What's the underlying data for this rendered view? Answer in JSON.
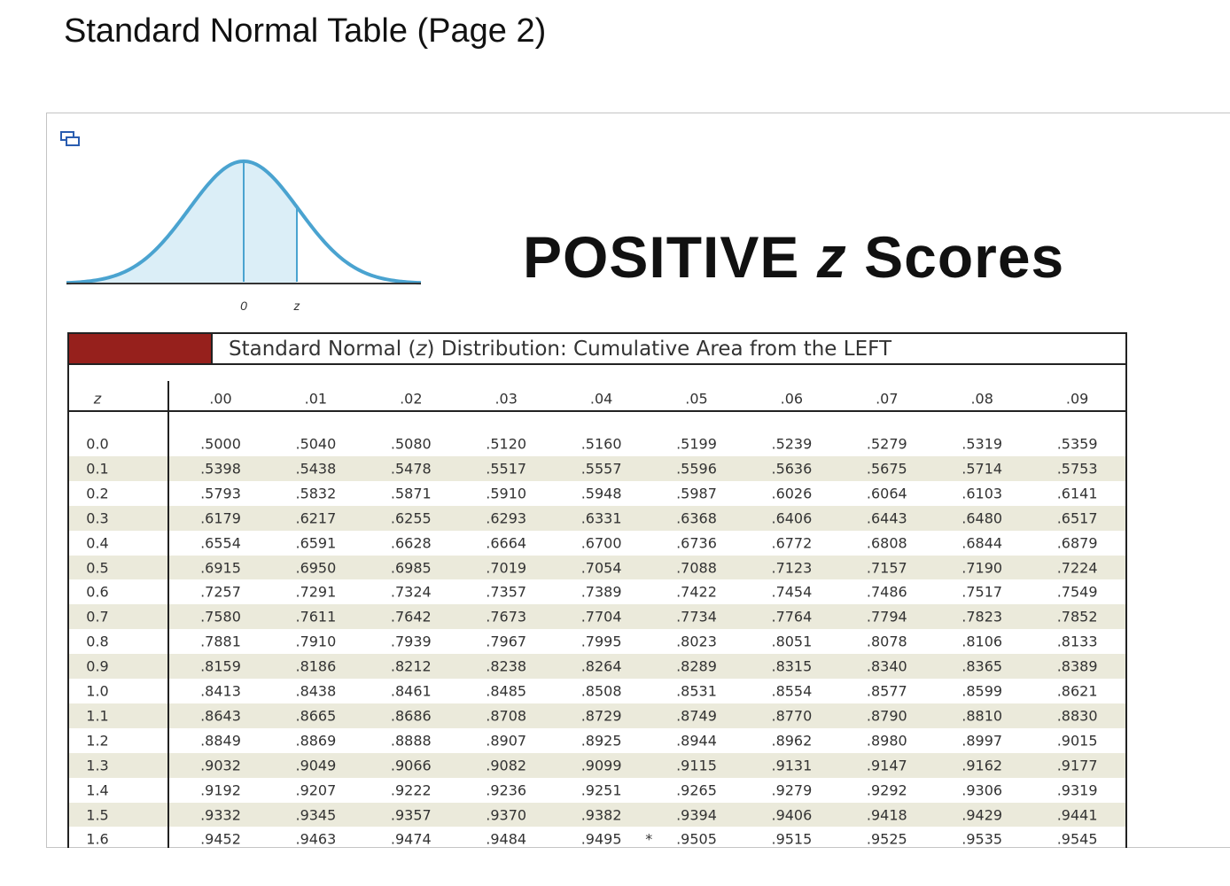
{
  "header": {
    "title": "Standard Normal Table (Page 2)"
  },
  "figure": {
    "heading_prefix": "POSITIVE",
    "heading_variable": "z",
    "heading_suffix": "Scores",
    "curve_labels": [
      "0",
      "z"
    ]
  },
  "table": {
    "caption_prefix": "Standard Normal (",
    "caption_variable": "z",
    "caption_suffix": ") Distribution: Cumulative Area from the LEFT",
    "columns": [
      "z",
      ".00",
      ".01",
      ".02",
      ".03",
      ".04",
      ".05",
      ".06",
      ".07",
      ".08",
      ".09"
    ],
    "rows": [
      [
        "0.0",
        ".5000",
        ".5040",
        ".5080",
        ".5120",
        ".5160",
        ".5199",
        ".5239",
        ".5279",
        ".5319",
        ".5359"
      ],
      [
        "0.1",
        ".5398",
        ".5438",
        ".5478",
        ".5517",
        ".5557",
        ".5596",
        ".5636",
        ".5675",
        ".5714",
        ".5753"
      ],
      [
        "0.2",
        ".5793",
        ".5832",
        ".5871",
        ".5910",
        ".5948",
        ".5987",
        ".6026",
        ".6064",
        ".6103",
        ".6141"
      ],
      [
        "0.3",
        ".6179",
        ".6217",
        ".6255",
        ".6293",
        ".6331",
        ".6368",
        ".6406",
        ".6443",
        ".6480",
        ".6517"
      ],
      [
        "0.4",
        ".6554",
        ".6591",
        ".6628",
        ".6664",
        ".6700",
        ".6736",
        ".6772",
        ".6808",
        ".6844",
        ".6879"
      ],
      [
        "0.5",
        ".6915",
        ".6950",
        ".6985",
        ".7019",
        ".7054",
        ".7088",
        ".7123",
        ".7157",
        ".7190",
        ".7224"
      ],
      [
        "0.6",
        ".7257",
        ".7291",
        ".7324",
        ".7357",
        ".7389",
        ".7422",
        ".7454",
        ".7486",
        ".7517",
        ".7549"
      ],
      [
        "0.7",
        ".7580",
        ".7611",
        ".7642",
        ".7673",
        ".7704",
        ".7734",
        ".7764",
        ".7794",
        ".7823",
        ".7852"
      ],
      [
        "0.8",
        ".7881",
        ".7910",
        ".7939",
        ".7967",
        ".7995",
        ".8023",
        ".8051",
        ".8078",
        ".8106",
        ".8133"
      ],
      [
        "0.9",
        ".8159",
        ".8186",
        ".8212",
        ".8238",
        ".8264",
        ".8289",
        ".8315",
        ".8340",
        ".8365",
        ".8389"
      ],
      [
        "1.0",
        ".8413",
        ".8438",
        ".8461",
        ".8485",
        ".8508",
        ".8531",
        ".8554",
        ".8577",
        ".8599",
        ".8621"
      ],
      [
        "1.1",
        ".8643",
        ".8665",
        ".8686",
        ".8708",
        ".8729",
        ".8749",
        ".8770",
        ".8790",
        ".8810",
        ".8830"
      ],
      [
        "1.2",
        ".8849",
        ".8869",
        ".8888",
        ".8907",
        ".8925",
        ".8944",
        ".8962",
        ".8980",
        ".8997",
        ".9015"
      ],
      [
        "1.3",
        ".9032",
        ".9049",
        ".9066",
        ".9082",
        ".9099",
        ".9115",
        ".9131",
        ".9147",
        ".9162",
        ".9177"
      ],
      [
        "1.4",
        ".9192",
        ".9207",
        ".9222",
        ".9236",
        ".9251",
        ".9265",
        ".9279",
        ".9292",
        ".9306",
        ".9319"
      ],
      [
        "1.5",
        ".9332",
        ".9345",
        ".9357",
        ".9370",
        ".9382",
        ".9394",
        ".9406",
        ".9418",
        ".9429",
        ".9441"
      ],
      [
        "1.6",
        ".9452",
        ".9463",
        ".9474",
        ".9484",
        ".9495",
        ".9505",
        ".9515",
        ".9525",
        ".9535",
        ".9545"
      ]
    ],
    "marker": "*"
  }
}
